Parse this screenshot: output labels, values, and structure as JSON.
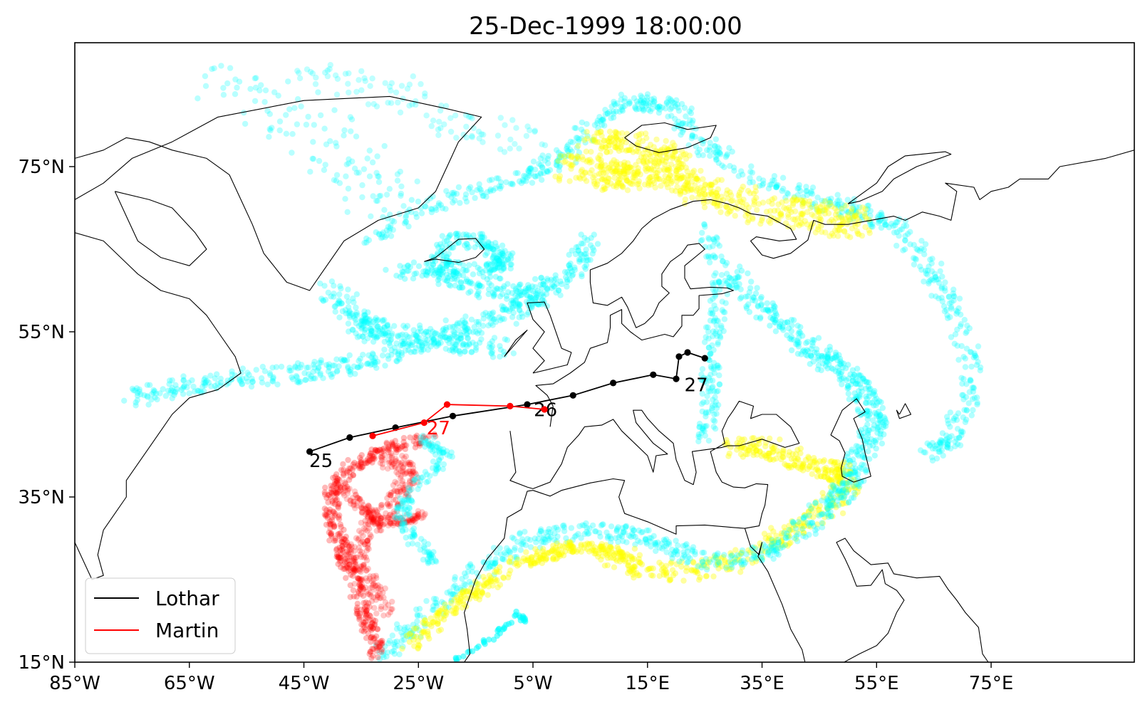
{
  "chart_data": {
    "type": "scatter",
    "title": "25-Dec-1999 18:00:00",
    "projection": "plate-carree",
    "xlim": [
      -85,
      100
    ],
    "ylim": [
      15,
      90
    ],
    "x_ticks": [
      {
        "value": -85,
        "label": "85°W"
      },
      {
        "value": -65,
        "label": "65°W"
      },
      {
        "value": -45,
        "label": "45°W"
      },
      {
        "value": -25,
        "label": "25°W"
      },
      {
        "value": -5,
        "label": "5°W"
      },
      {
        "value": 15,
        "label": "15°E"
      },
      {
        "value": 35,
        "label": "35°E"
      },
      {
        "value": 55,
        "label": "55°E"
      },
      {
        "value": 75,
        "label": "75°E"
      }
    ],
    "y_ticks": [
      {
        "value": 15,
        "label": "15°N"
      },
      {
        "value": 35,
        "label": "35°N"
      },
      {
        "value": 55,
        "label": "55°N"
      },
      {
        "value": 75,
        "label": "75°N"
      }
    ],
    "colors": {
      "lothar": "#000000",
      "martin": "#ff0000",
      "parcels_cyan": "#00ffff",
      "parcels_yellow": "#ffff00",
      "parcels_red": "#ff0000",
      "coast": "#000000",
      "border": "#555555"
    },
    "tracks": [
      {
        "name": "Lothar",
        "color": "#000000",
        "points": [
          [
            -44,
            40.5
          ],
          [
            -37,
            42.2
          ],
          [
            -29,
            43.4
          ],
          [
            -19,
            44.8
          ],
          [
            -6,
            46.2
          ],
          [
            2,
            47.3
          ],
          [
            9,
            48.8
          ],
          [
            16,
            49.8
          ],
          [
            20,
            49.3
          ],
          [
            20.5,
            52
          ],
          [
            22,
            52.5
          ],
          [
            25,
            51.8
          ]
        ],
        "labels": [
          {
            "text": "25",
            "lon": -42,
            "lat": 38.6
          },
          {
            "text": "26",
            "lon": -2.8,
            "lat": 44.8
          },
          {
            "text": "27",
            "lon": 23.5,
            "lat": 47.8
          }
        ]
      },
      {
        "name": "Martin",
        "color": "#ff0000",
        "points": [
          [
            -33,
            42.4
          ],
          [
            -24,
            44
          ],
          [
            -20,
            46.2
          ],
          [
            -9,
            46
          ],
          [
            -3,
            45.6
          ]
        ],
        "labels": [
          {
            "text": "27",
            "lon": -21.5,
            "lat": 42.6
          }
        ]
      }
    ],
    "legend": {
      "position": "lower-left",
      "entries": [
        "Lothar",
        "Martin"
      ]
    },
    "parcel_groups": [
      {
        "color": "#00ffff",
        "role": "NW Atlantic band"
      },
      {
        "color": "#00ffff",
        "role": "Iceland spiral"
      },
      {
        "color": "#00ffff",
        "role": "Svalbard lobe"
      },
      {
        "color": "#ffff00",
        "role": "Barents yellow"
      },
      {
        "color": "#00ffff",
        "role": "Ural loop"
      },
      {
        "color": "#ffff00",
        "role": "Mediterranean yellow"
      },
      {
        "color": "#00ffff",
        "role": "North Africa band"
      },
      {
        "color": "#ff0000",
        "role": "subtropical red hook"
      }
    ]
  }
}
